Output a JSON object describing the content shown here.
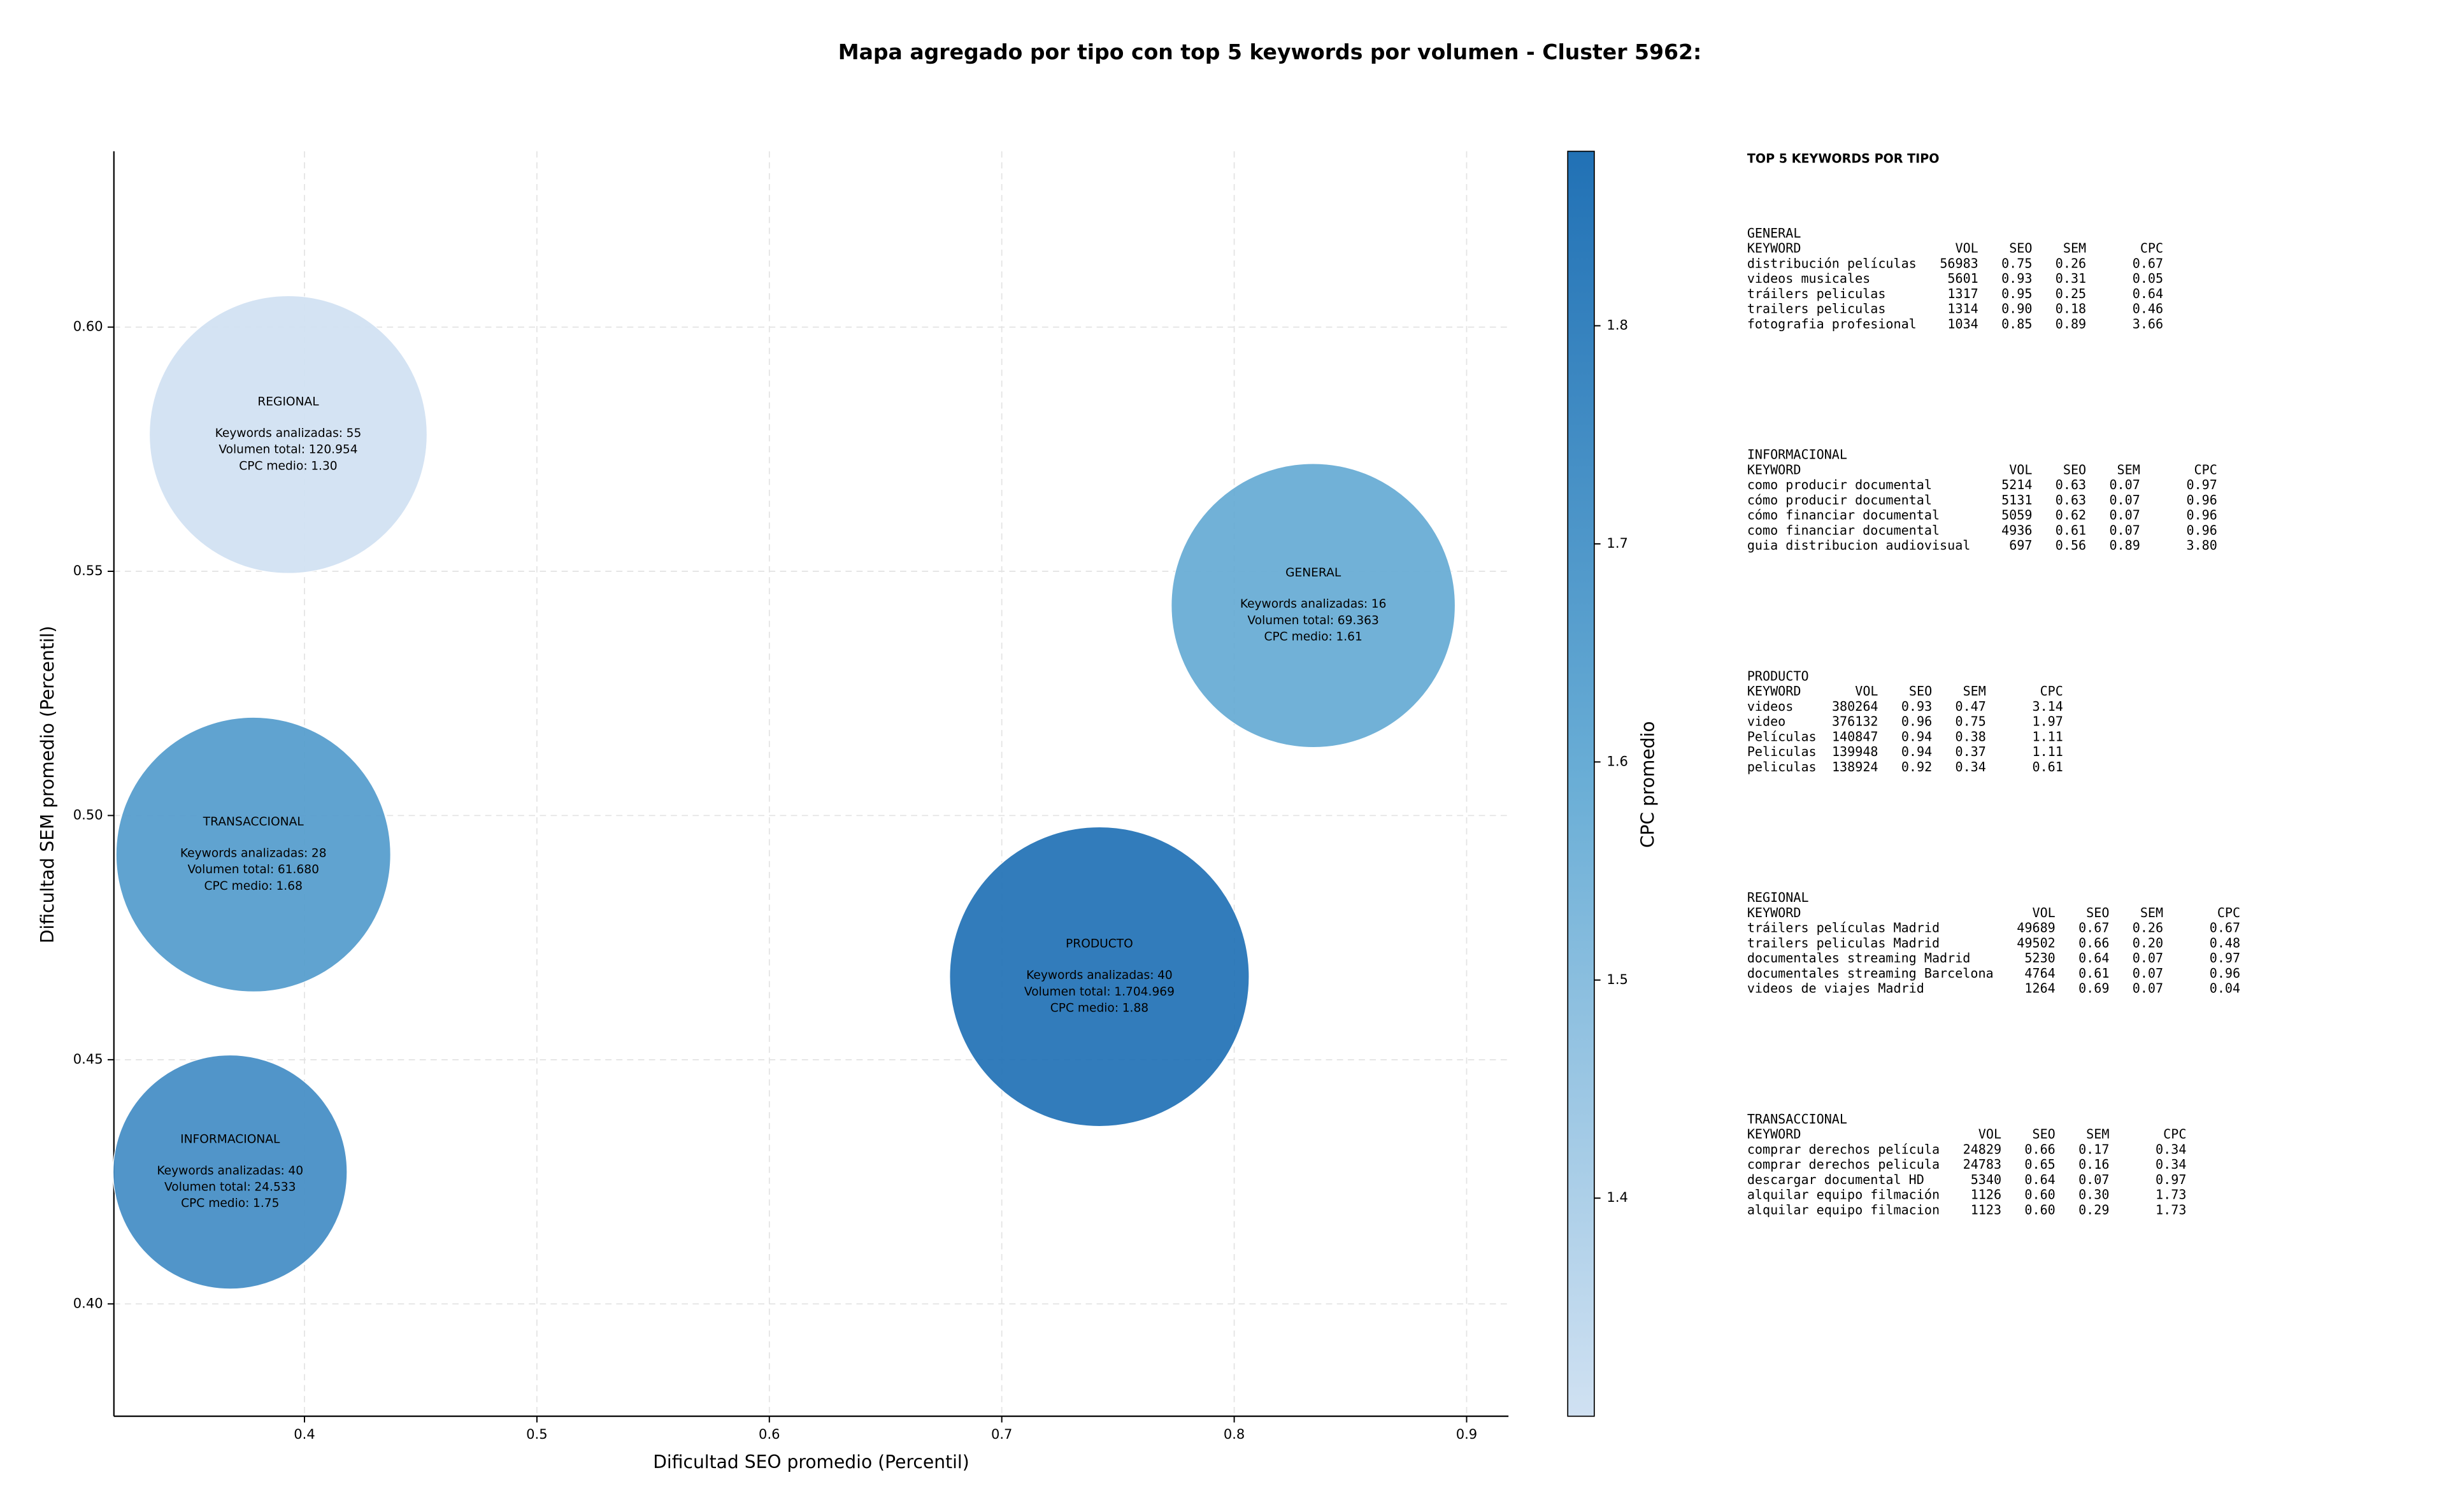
{
  "chart_data": {
    "type": "bubble",
    "title": "Mapa agregado por tipo con top 5 keywords por volumen - Cluster 5962:",
    "x_label": "Dificultad SEO promedio (Percentil)",
    "y_label": "Dificultad SEM promedio (Percentil)",
    "colorbar_label": "CPC promedio",
    "xlim": [
      0.318,
      0.918
    ],
    "xticks": [
      0.4,
      0.5,
      0.6,
      0.7,
      0.8,
      0.9
    ],
    "ylim": [
      0.377,
      0.636
    ],
    "yticks": [
      {
        "value": 0.4,
        "label": "0.40"
      },
      0.45,
      {
        "value": 0.5,
        "label": "0.50"
      },
      0.55,
      {
        "value": 0.6,
        "label": "0.60"
      }
    ],
    "clim": [
      1.3,
      1.88
    ],
    "cticks": [
      1.4,
      1.5,
      1.6,
      1.7,
      1.8
    ],
    "colormap": [
      "#d0e1f2",
      "#6aaed6",
      "#2171b5"
    ],
    "grid": true,
    "annotation_labels": {
      "keywords": "Keywords analizadas:",
      "volume": "Volumen total:",
      "cpc": "CPC medio:"
    },
    "points": [
      {
        "name": "REGIONAL",
        "x": 0.393,
        "y": 0.578,
        "size": 7921,
        "keywords": 55,
        "volume": 120954,
        "volume_label": "120.954",
        "cpc": 1.3,
        "cpc_label": "1.30"
      },
      {
        "name": "GENERAL",
        "x": 0.834,
        "y": 0.543,
        "size": 8281,
        "keywords": 16,
        "volume": 69363,
        "volume_label": "69.363",
        "cpc": 1.61,
        "cpc_label": "1.61"
      },
      {
        "name": "TRANSACCIONAL",
        "x": 0.378,
        "y": 0.492,
        "size": 7744,
        "keywords": 28,
        "volume": 61680,
        "volume_label": "61.680",
        "cpc": 1.68,
        "cpc_label": "1.68"
      },
      {
        "name": "PRODUCTO",
        "x": 0.742,
        "y": 0.467,
        "size": 9216,
        "keywords": 40,
        "volume": 1704969,
        "volume_label": "1.704.969",
        "cpc": 1.88,
        "cpc_label": "1.88"
      },
      {
        "name": "INFORMACIONAL",
        "x": 0.368,
        "y": 0.427,
        "size": 5625,
        "keywords": 40,
        "volume": 24533,
        "volume_label": "24.533",
        "cpc": 1.75,
        "cpc_label": "1.75"
      }
    ]
  },
  "side_table": {
    "title": "TOP 5 KEYWORDS POR TIPO",
    "columns": [
      "KEYWORD",
      "VOL",
      "SEO",
      "SEM",
      "CPC"
    ],
    "groups": [
      {
        "name": "GENERAL",
        "rows": [
          [
            "distribución películas",
            "56983",
            "0.75",
            "0.26",
            "0.67"
          ],
          [
            "videos musicales",
            "5601",
            "0.93",
            "0.31",
            "0.05"
          ],
          [
            "tráilers peliculas",
            "1317",
            "0.95",
            "0.25",
            "0.64"
          ],
          [
            "trailers peliculas",
            "1314",
            "0.90",
            "0.18",
            "0.46"
          ],
          [
            "fotografia profesional",
            "1034",
            "0.85",
            "0.89",
            "3.66"
          ]
        ]
      },
      {
        "name": "INFORMACIONAL",
        "rows": [
          [
            "como producir documental",
            "5214",
            "0.63",
            "0.07",
            "0.97"
          ],
          [
            "cómo producir documental",
            "5131",
            "0.63",
            "0.07",
            "0.96"
          ],
          [
            "cómo financiar documental",
            "5059",
            "0.62",
            "0.07",
            "0.96"
          ],
          [
            "como financiar documental",
            "4936",
            "0.61",
            "0.07",
            "0.96"
          ],
          [
            "guia distribucion audiovisual",
            "697",
            "0.56",
            "0.89",
            "3.80"
          ]
        ]
      },
      {
        "name": "PRODUCTO",
        "rows": [
          [
            "videos",
            "380264",
            "0.93",
            "0.47",
            "3.14"
          ],
          [
            "video",
            "376132",
            "0.96",
            "0.75",
            "1.97"
          ],
          [
            "Películas",
            "140847",
            "0.94",
            "0.38",
            "1.11"
          ],
          [
            "Peliculas",
            "139948",
            "0.94",
            "0.37",
            "1.11"
          ],
          [
            "peliculas",
            "138924",
            "0.92",
            "0.34",
            "0.61"
          ]
        ]
      },
      {
        "name": "REGIONAL",
        "rows": [
          [
            "tráilers películas Madrid",
            "49689",
            "0.67",
            "0.26",
            "0.67"
          ],
          [
            "trailers peliculas Madrid",
            "49502",
            "0.66",
            "0.20",
            "0.48"
          ],
          [
            "documentales streaming Madrid",
            "5230",
            "0.64",
            "0.07",
            "0.97"
          ],
          [
            "documentales streaming Barcelona",
            "4764",
            "0.61",
            "0.07",
            "0.96"
          ],
          [
            "videos de viajes Madrid",
            "1264",
            "0.69",
            "0.07",
            "0.04"
          ]
        ]
      },
      {
        "name": "TRANSACCIONAL",
        "rows": [
          [
            "comprar derechos película",
            "24829",
            "0.66",
            "0.17",
            "0.34"
          ],
          [
            "comprar derechos pelicula",
            "24783",
            "0.65",
            "0.16",
            "0.34"
          ],
          [
            "descargar documental HD",
            "5340",
            "0.64",
            "0.07",
            "0.97"
          ],
          [
            "alquilar equipo filmación",
            "1126",
            "0.60",
            "0.30",
            "1.73"
          ],
          [
            "alquilar equipo filmacion",
            "1123",
            "0.60",
            "0.29",
            "1.73"
          ]
        ]
      }
    ]
  }
}
